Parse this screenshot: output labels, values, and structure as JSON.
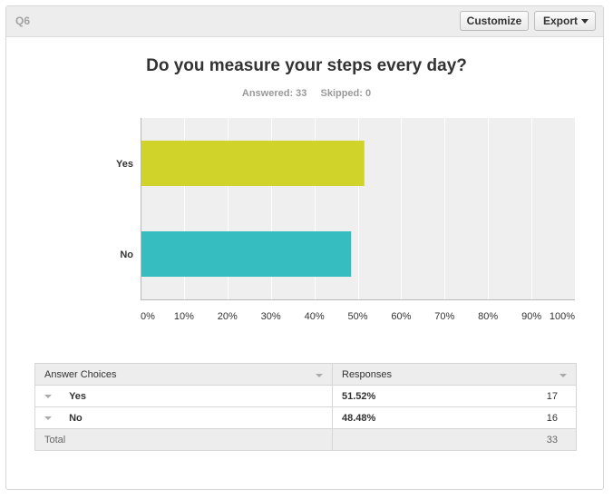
{
  "header": {
    "question_label": "Q6",
    "customize_label": "Customize",
    "export_label": "Export"
  },
  "question": {
    "title": "Do you measure your steps every day?",
    "answered": "Answered: 33",
    "skipped": "Skipped: 0"
  },
  "chart_data": {
    "type": "bar",
    "orientation": "horizontal",
    "categories": [
      "Yes",
      "No"
    ],
    "values": [
      51.52,
      48.48
    ],
    "colors": [
      "#d0d32a",
      "#36bdbf"
    ],
    "xlim": [
      0,
      100
    ],
    "x_ticks": [
      "0%",
      "10%",
      "20%",
      "30%",
      "40%",
      "50%",
      "60%",
      "70%",
      "80%",
      "90%",
      "100%"
    ],
    "grid": true
  },
  "table": {
    "headers": [
      "Answer Choices",
      "Responses"
    ],
    "rows": [
      {
        "choice": "Yes",
        "percent": "51.52%",
        "count": "17"
      },
      {
        "choice": "No",
        "percent": "48.48%",
        "count": "16"
      }
    ],
    "total_label": "Total",
    "total_count": "33"
  }
}
